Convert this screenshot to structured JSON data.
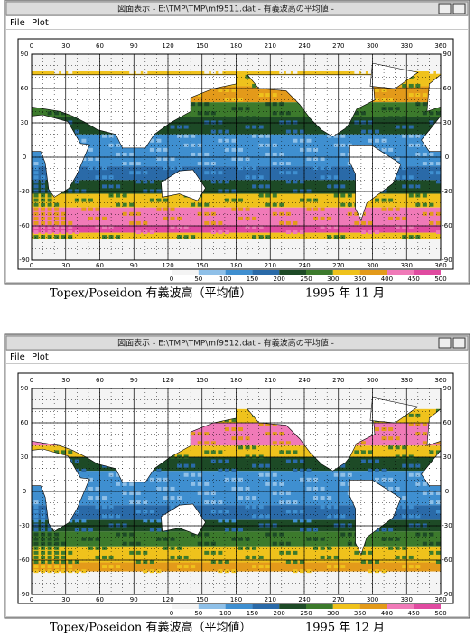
{
  "windows": [
    {
      "title_bar": "図面表示 - E:\\TMP\\TMP\\mf9511.dat - 有義波高の平均値 -",
      "menu": [
        "File",
        "Plot"
      ],
      "map": {
        "xticks": [
          0,
          30,
          60,
          90,
          120,
          150,
          180,
          210,
          240,
          270,
          300,
          330,
          360
        ],
        "yticks": [
          90,
          60,
          30,
          0,
          -30,
          -60,
          -90
        ]
      },
      "colorbar": {
        "ticks": [
          0,
          50,
          100,
          150,
          200,
          250,
          300,
          350,
          400,
          450,
          500
        ],
        "colors": [
          "#f4f4f4",
          "#8fc0e8",
          "#3f8fd0",
          "#2a6aa8",
          "#1d4a26",
          "#3c7a2c",
          "#efc21c",
          "#e39a1a",
          "#f07ab8",
          "#e04aa0"
        ]
      },
      "caption": {
        "label": "Topex/Poseidon 有義波高（平均値）",
        "date": "1995 年 11 月"
      }
    },
    {
      "title_bar": "図面表示 - E:\\TMP\\TMP\\mf9512.dat - 有義波高の平均値 -",
      "menu": [
        "File",
        "Plot"
      ],
      "map": {
        "xticks": [
          0,
          30,
          60,
          90,
          120,
          150,
          180,
          210,
          240,
          270,
          300,
          330,
          360
        ],
        "yticks": [
          90,
          60,
          30,
          0,
          -30,
          -60,
          -90
        ]
      },
      "colorbar": {
        "ticks": [
          0,
          50,
          100,
          150,
          200,
          250,
          300,
          350,
          400,
          450,
          500
        ],
        "colors": [
          "#f4f4f4",
          "#8fc0e8",
          "#3f8fd0",
          "#2a6aa8",
          "#1d4a26",
          "#3c7a2c",
          "#efc21c",
          "#e39a1a",
          "#f07ab8",
          "#e04aa0"
        ]
      },
      "caption": {
        "label": "Topex/Poseidon 有義波高（平均値）",
        "date": "1995 年 12 月"
      }
    }
  ]
}
